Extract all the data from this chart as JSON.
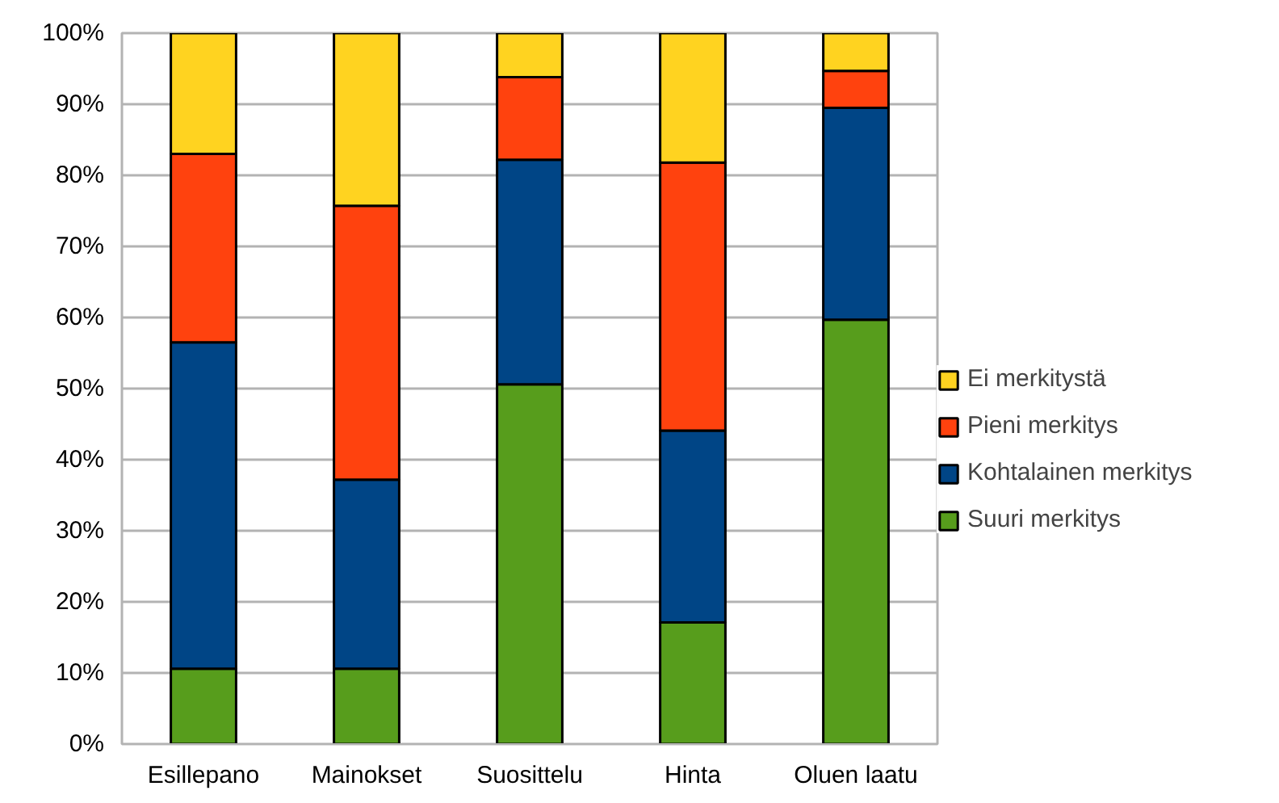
{
  "chart_data": {
    "type": "bar",
    "stacked": true,
    "categories": [
      "Esillepano",
      "Mainokset",
      "Suosittelu",
      "Hinta",
      "Oluen laatu"
    ],
    "series": [
      {
        "name": "Suuri merkitys",
        "color": "#579d1c",
        "values": [
          10.6,
          10.6,
          50.6,
          17.1,
          59.7
        ]
      },
      {
        "name": "Kohtalainen merkitys",
        "color": "#004586",
        "values": [
          45.9,
          26.6,
          31.6,
          27.0,
          29.8
        ]
      },
      {
        "name": "Pieni merkitys",
        "color": "#ff420e",
        "values": [
          26.5,
          38.5,
          11.6,
          37.7,
          5.2
        ]
      },
      {
        "name": "Ei merkitystä",
        "color": "#ffd320",
        "values": [
          17.0,
          24.3,
          6.2,
          18.2,
          5.3
        ]
      }
    ],
    "ylim": [
      0,
      100
    ],
    "yticks": [
      {
        "value": 0,
        "label": "0%"
      },
      {
        "value": 10,
        "label": "10%"
      },
      {
        "value": 20,
        "label": "20%"
      },
      {
        "value": 30,
        "label": "30%"
      },
      {
        "value": 40,
        "label": "40%"
      },
      {
        "value": 50,
        "label": "50%"
      },
      {
        "value": 60,
        "label": "60%"
      },
      {
        "value": 70,
        "label": "70%"
      },
      {
        "value": 80,
        "label": "80%"
      },
      {
        "value": 90,
        "label": "90%"
      },
      {
        "value": 100,
        "label": "100%"
      }
    ],
    "grid": "y",
    "legend": "right"
  }
}
